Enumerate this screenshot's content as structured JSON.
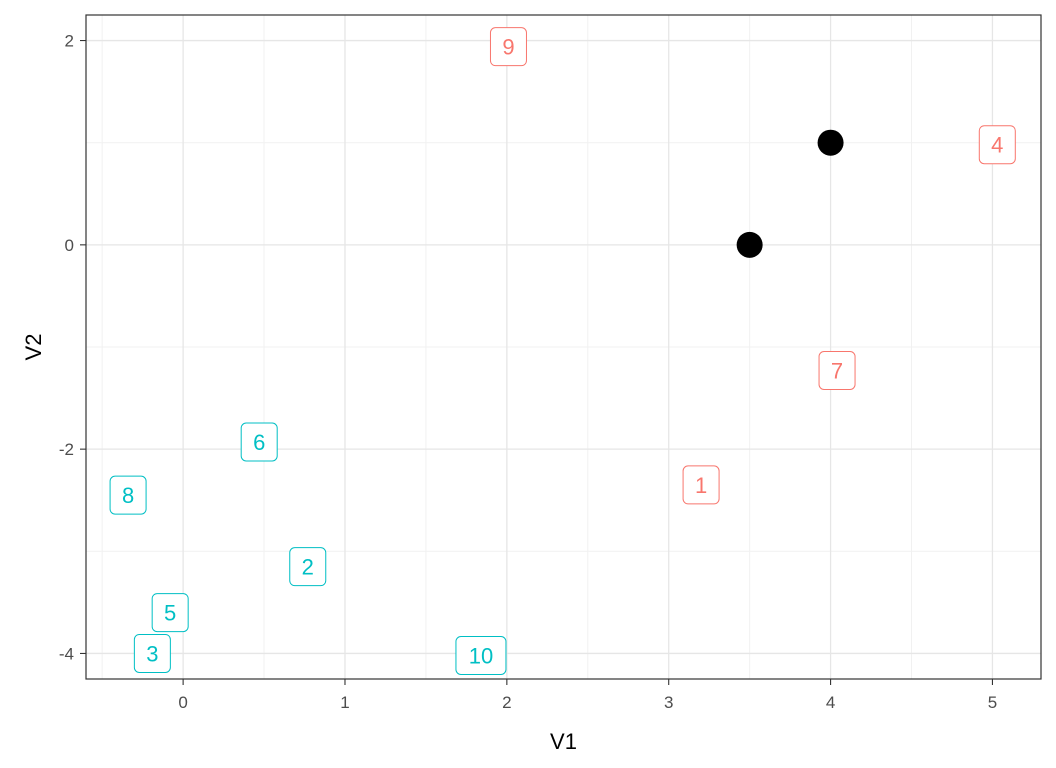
{
  "chart_data": {
    "type": "scatter",
    "title": "",
    "xlabel": "V1",
    "ylabel": "V2",
    "xlim": [
      -0.6,
      5.3
    ],
    "ylim": [
      -4.25,
      2.25
    ],
    "xticks": [
      0,
      1,
      2,
      3,
      4,
      5
    ],
    "yticks": [
      -4,
      -2,
      0,
      2
    ],
    "xtick_labels": [
      "0",
      "1",
      "2",
      "3",
      "4",
      "5"
    ],
    "ytick_labels": [
      "-4",
      "-2",
      "0",
      "2"
    ],
    "grid": true,
    "theme": "bw",
    "colors": {
      "group_1": "#F8766D",
      "group_2": "#00BFC4",
      "center": "#000000"
    },
    "labeled_points": [
      {
        "label": "1",
        "x": 3.2,
        "y": -2.35,
        "group": "group_1"
      },
      {
        "label": "2",
        "x": 0.77,
        "y": -3.15,
        "group": "group_2"
      },
      {
        "label": "3",
        "x": -0.19,
        "y": -4.0,
        "group": "group_2"
      },
      {
        "label": "4",
        "x": 5.03,
        "y": 0.98,
        "group": "group_1"
      },
      {
        "label": "5",
        "x": -0.08,
        "y": -3.6,
        "group": "group_2"
      },
      {
        "label": "6",
        "x": 0.47,
        "y": -1.93,
        "group": "group_2"
      },
      {
        "label": "7",
        "x": 4.04,
        "y": -1.23,
        "group": "group_1"
      },
      {
        "label": "8",
        "x": -0.34,
        "y": -2.45,
        "group": "group_2"
      },
      {
        "label": "9",
        "x": 2.01,
        "y": 1.94,
        "group": "group_1"
      },
      {
        "label": "10",
        "x": 1.84,
        "y": -4.02,
        "group": "group_2"
      }
    ],
    "centers": [
      {
        "x": 3.5,
        "y": 0.0
      },
      {
        "x": 4.0,
        "y": 1.0
      }
    ]
  }
}
